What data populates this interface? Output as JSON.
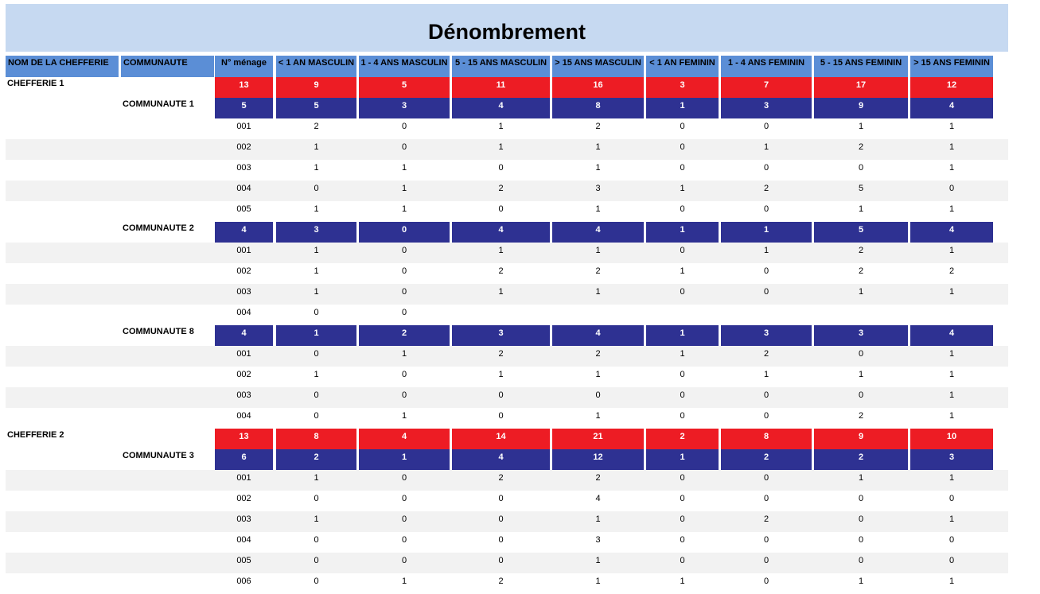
{
  "title": "Dénombrement",
  "headers": [
    "NOM DE LA CHEFFERIE",
    "COMMUNAUTE",
    "N° ménage",
    "< 1 AN MASCULIN",
    "1 - 4 ANS MASCULIN",
    "5 - 15 ANS MASCULIN",
    "> 15 ANS MASCULIN",
    "< 1 AN FEMININ",
    "1 - 4 ANS FEMININ",
    "5 - 15 ANS FEMININ",
    "> 15 ANS FEMININ"
  ],
  "chefferies": [
    {
      "name": "CHEFFERIE 1",
      "totals": [
        "13",
        "9",
        "5",
        "11",
        "16",
        "3",
        "7",
        "17",
        "12"
      ],
      "communautes": [
        {
          "name": "COMMUNAUTE 1",
          "totals": [
            "5",
            "5",
            "3",
            "4",
            "8",
            "1",
            "3",
            "9",
            "4"
          ],
          "menages": [
            [
              "001",
              "2",
              "0",
              "1",
              "2",
              "0",
              "0",
              "1",
              "1"
            ],
            [
              "002",
              "1",
              "0",
              "1",
              "1",
              "0",
              "1",
              "2",
              "1"
            ],
            [
              "003",
              "1",
              "1",
              "0",
              "1",
              "0",
              "0",
              "0",
              "1"
            ],
            [
              "004",
              "0",
              "1",
              "2",
              "3",
              "1",
              "2",
              "5",
              "0"
            ],
            [
              "005",
              "1",
              "1",
              "0",
              "1",
              "0",
              "0",
              "1",
              "1"
            ]
          ]
        },
        {
          "name": "COMMUNAUTE 2",
          "totals": [
            "4",
            "3",
            "0",
            "4",
            "4",
            "1",
            "1",
            "5",
            "4"
          ],
          "menages": [
            [
              "001",
              "1",
              "0",
              "1",
              "1",
              "0",
              "1",
              "2",
              "1"
            ],
            [
              "002",
              "1",
              "0",
              "2",
              "2",
              "1",
              "0",
              "2",
              "2"
            ],
            [
              "003",
              "1",
              "0",
              "1",
              "1",
              "0",
              "0",
              "1",
              "1"
            ],
            [
              "004",
              "0",
              "0",
              "",
              "",
              "",
              "",
              "",
              ""
            ]
          ]
        },
        {
          "name": "COMMUNAUTE 8",
          "totals": [
            "4",
            "1",
            "2",
            "3",
            "4",
            "1",
            "3",
            "3",
            "4"
          ],
          "menages": [
            [
              "001",
              "0",
              "1",
              "2",
              "2",
              "1",
              "2",
              "0",
              "1"
            ],
            [
              "002",
              "1",
              "0",
              "1",
              "1",
              "0",
              "1",
              "1",
              "1"
            ],
            [
              "003",
              "0",
              "0",
              "0",
              "0",
              "0",
              "0",
              "0",
              "1"
            ],
            [
              "004",
              "0",
              "1",
              "0",
              "1",
              "0",
              "0",
              "2",
              "1"
            ]
          ]
        }
      ]
    },
    {
      "name": "CHEFFERIE 2",
      "totals": [
        "13",
        "8",
        "4",
        "14",
        "21",
        "2",
        "8",
        "9",
        "10"
      ],
      "communautes": [
        {
          "name": "COMMUNAUTE 3",
          "totals": [
            "6",
            "2",
            "1",
            "4",
            "12",
            "1",
            "2",
            "2",
            "3"
          ],
          "menages": [
            [
              "001",
              "1",
              "0",
              "2",
              "2",
              "0",
              "0",
              "1",
              "1"
            ],
            [
              "002",
              "0",
              "0",
              "0",
              "4",
              "0",
              "0",
              "0",
              "0"
            ],
            [
              "003",
              "1",
              "0",
              "0",
              "1",
              "0",
              "2",
              "0",
              "1"
            ],
            [
              "004",
              "0",
              "0",
              "0",
              "3",
              "0",
              "0",
              "0",
              "0"
            ],
            [
              "005",
              "0",
              "0",
              "0",
              "1",
              "0",
              "0",
              "0",
              "0"
            ],
            [
              "006",
              "0",
              "1",
              "2",
              "1",
              "1",
              "0",
              "1",
              "1"
            ]
          ]
        }
      ]
    }
  ],
  "colors": {
    "title_bg": "#c6d9f1",
    "header_bg": "#5b8ed6",
    "chefferie_total": "#ed1c24",
    "communaute_total": "#2e3192",
    "alt_row": "#f2f2f2"
  }
}
